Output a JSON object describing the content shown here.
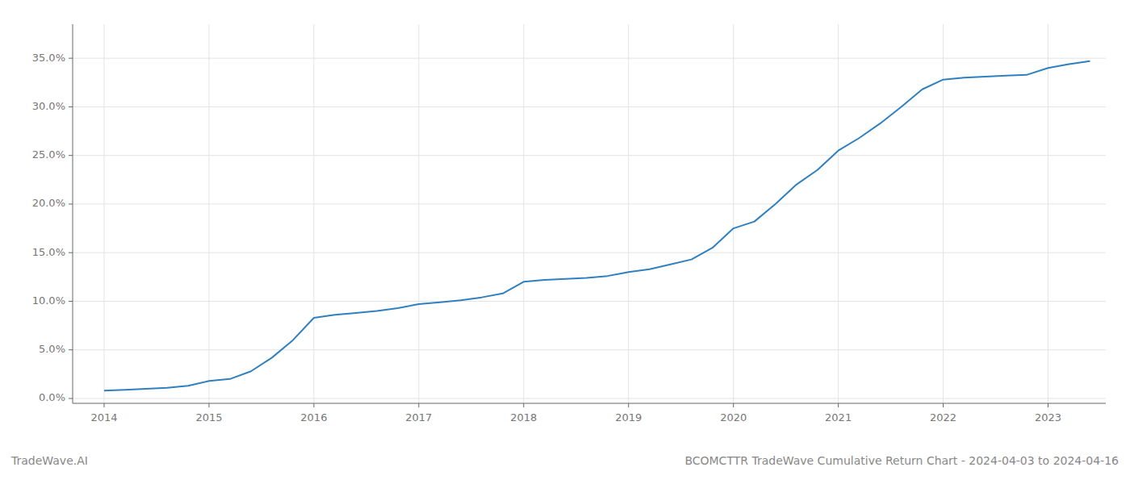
{
  "chart_data": {
    "type": "line",
    "x": [
      2014.0,
      2014.2,
      2014.4,
      2014.6,
      2014.8,
      2015.0,
      2015.2,
      2015.4,
      2015.6,
      2015.8,
      2016.0,
      2016.2,
      2016.4,
      2016.6,
      2016.8,
      2017.0,
      2017.2,
      2017.4,
      2017.6,
      2017.8,
      2018.0,
      2018.2,
      2018.4,
      2018.6,
      2018.8,
      2019.0,
      2019.2,
      2019.4,
      2019.6,
      2019.8,
      2020.0,
      2020.2,
      2020.4,
      2020.6,
      2020.8,
      2021.0,
      2021.2,
      2021.4,
      2021.6,
      2021.8,
      2022.0,
      2022.2,
      2022.4,
      2022.6,
      2022.8,
      2023.0,
      2023.2,
      2023.4
    ],
    "values": [
      0.008,
      0.009,
      0.01,
      0.011,
      0.013,
      0.018,
      0.02,
      0.028,
      0.042,
      0.06,
      0.083,
      0.086,
      0.088,
      0.09,
      0.093,
      0.097,
      0.099,
      0.101,
      0.104,
      0.108,
      0.12,
      0.122,
      0.123,
      0.124,
      0.126,
      0.13,
      0.133,
      0.138,
      0.143,
      0.155,
      0.175,
      0.182,
      0.2,
      0.22,
      0.235,
      0.255,
      0.268,
      0.283,
      0.3,
      0.318,
      0.328,
      0.33,
      0.331,
      0.332,
      0.333,
      0.34,
      0.344,
      0.347
    ],
    "color": "#3080c0",
    "xlim": [
      2013.7,
      2023.55
    ],
    "xticks": [
      2014,
      2015,
      2016,
      2017,
      2018,
      2019,
      2020,
      2021,
      2022,
      2023
    ],
    "ylim": [
      -0.005,
      0.385
    ],
    "yticks": [
      {
        "value": 0.0,
        "label": "0.0%"
      },
      {
        "value": 0.05,
        "label": "5.0%"
      },
      {
        "value": 0.1,
        "label": "10.0%"
      },
      {
        "value": 0.15,
        "label": "15.0%"
      },
      {
        "value": 0.2,
        "label": "20.0%"
      },
      {
        "value": 0.25,
        "label": "25.0%"
      },
      {
        "value": 0.3,
        "label": "30.0%"
      },
      {
        "value": 0.35,
        "label": "35.0%"
      }
    ],
    "grid": true,
    "annotations": [
      "TradeWave.AI",
      "BCOMCTTR TradeWave Cumulative Return Chart - 2024-04-03 to 2024-04-16"
    ]
  }
}
